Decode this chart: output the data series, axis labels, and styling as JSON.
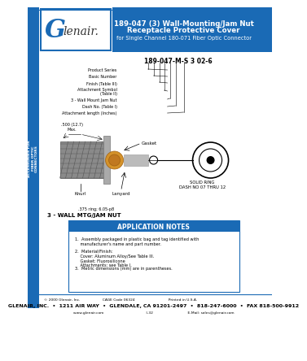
{
  "title_line1": "189-047 (3) Wall-Mounting/Jam Nut",
  "title_line2": "Receptacle Protective Cover",
  "title_line3": "for Single Channel 180-071 Fiber Optic Connector",
  "header_bg": "#1a6ab5",
  "header_text_color": "#ffffff",
  "logo_g": "G",
  "part_number": "189-047-M-S 3 02-6",
  "labels": [
    "Product Series",
    "Basic Number",
    "Finish (Table III)",
    "Attachment Symbol\n  (Table II)",
    "3 - Wall Mount Jam Nut",
    "Dash No. (Table I)",
    "Attachment length (Inches)"
  ],
  "diagram_label": "3 - WALL MTG/JAM NUT",
  "solid_ring_text": "SOLID RING\nDASH NO 07 THRU 12",
  "gasket_label": "Gasket",
  "knurl_label": "Knurl",
  "lanyard_label": "Lanyard",
  "dim_label": ".500 (12.7)\nMax.",
  "app_notes_title": "APPLICATION NOTES",
  "app_notes_bg": "#1a6ab5",
  "app_note1": "1.  Assembly packaged in plastic bag and tag identified with\n    manufacturer's name and part number.",
  "app_note2": "2.  Material/Finish:\n    Cover: Aluminum Alloy/See Table III.\n    Gasket: Fluorosilicone\n    Attachments: see Table I.",
  "app_note3": "3.  Metric dimensions (mm) are in parentheses.",
  "footer_line1": "© 2000 Glenair, Inc.                    CAGE Code 06324                              Printed in U.S.A.",
  "footer_line2": "GLENAIR, INC.  •  1211 AIR WAY  •  GLENDALE, CA 91201-2497  •  818-247-6000  •  FAX 818-500-9912",
  "footer_line3": "www.glenair.com                                      I-32                               E-Mail: sales@glenair.com",
  "page_bg": "#ffffff",
  "side_tab_bg": "#1a6ab5",
  "side_tab_text": "ACCESSORIES FOR\nFIBER OPTIC\nCONNECTORS"
}
